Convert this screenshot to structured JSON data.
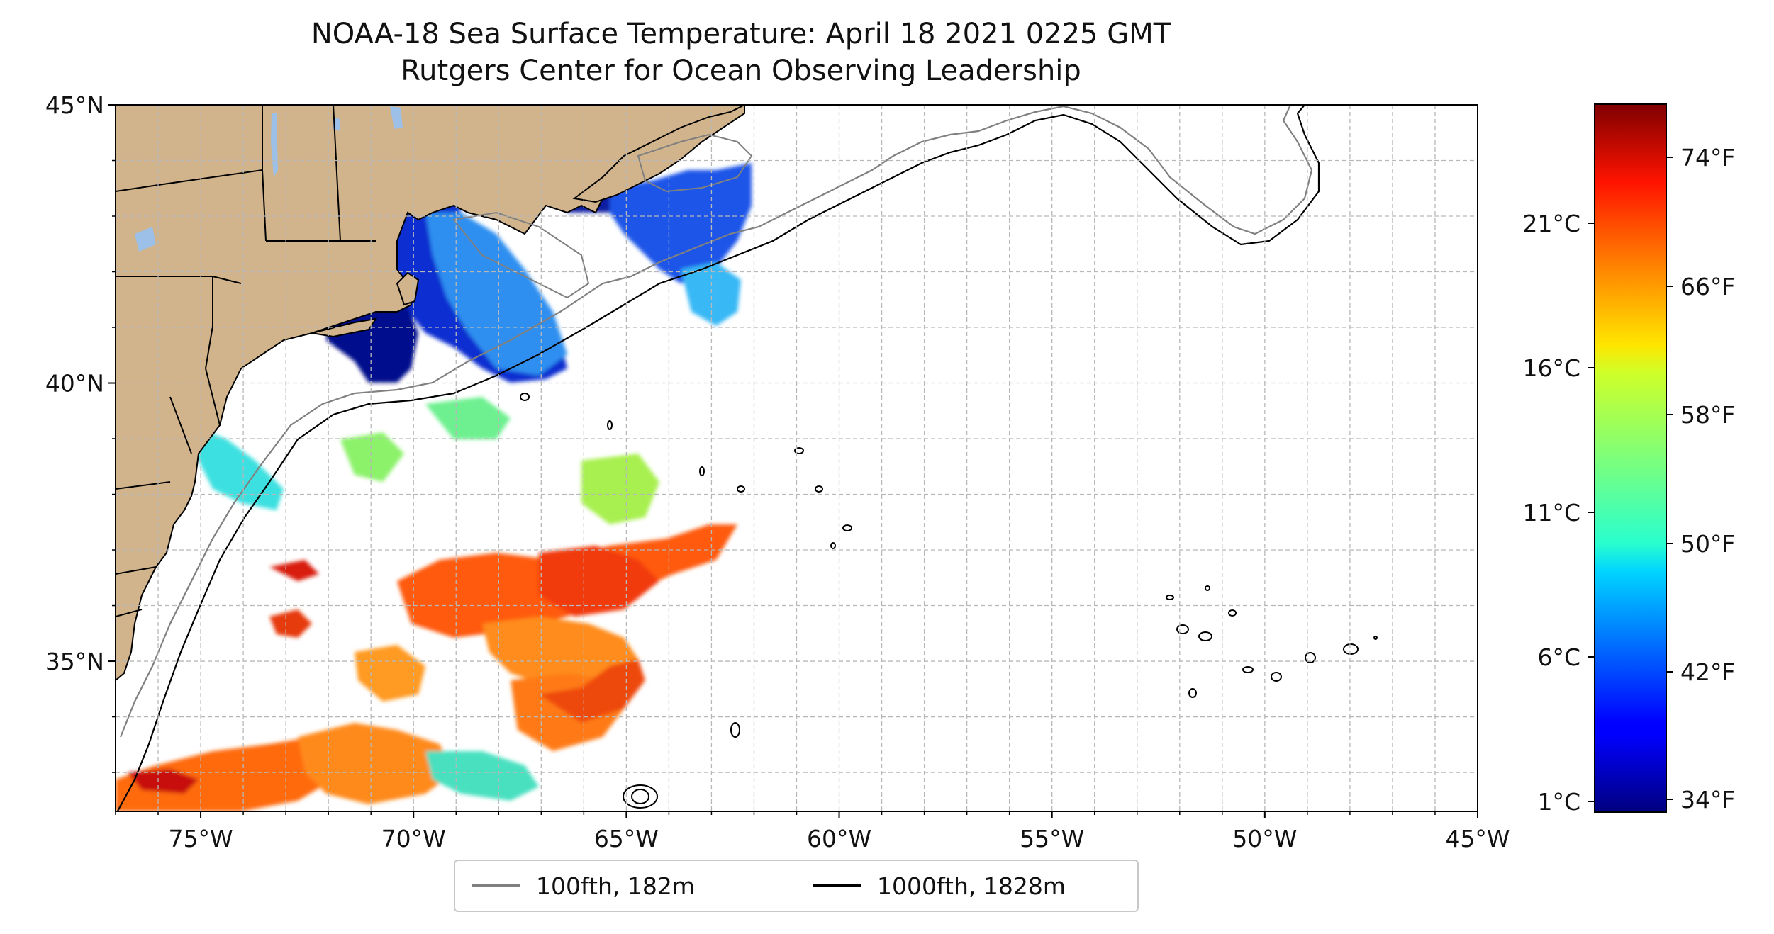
{
  "title": {
    "line1": "NOAA-18 Sea Surface Temperature: April 18 2021 0225 GMT",
    "line2": "Rutgers Center for Ocean Observing Leadership"
  },
  "map": {
    "lon_range": [
      -77,
      -45
    ],
    "lat_range": [
      32.3,
      45
    ],
    "lon_ticks": [
      {
        "value": -75,
        "label": "75°W"
      },
      {
        "value": -70,
        "label": "70°W"
      },
      {
        "value": -65,
        "label": "65°W"
      },
      {
        "value": -60,
        "label": "60°W"
      },
      {
        "value": -55,
        "label": "55°W"
      },
      {
        "value": -50,
        "label": "50°W"
      },
      {
        "value": -45,
        "label": "45°W"
      }
    ],
    "lat_ticks": [
      {
        "value": 45,
        "label": "45°N"
      },
      {
        "value": 40,
        "label": "40°N"
      },
      {
        "value": 35,
        "label": "35°N"
      }
    ],
    "grid": true,
    "land_color": "#d2b48c",
    "lake_color": "#9cc0e8"
  },
  "legend": {
    "entries": [
      {
        "label": "100fth, 182m",
        "color": "#808080"
      },
      {
        "label": "1000fth, 1828m",
        "color": "#000000"
      }
    ]
  },
  "colorbar": {
    "colormap": "jet",
    "celsius_ticks": [
      "21°C",
      "16°C",
      "11°C",
      "6°C",
      "1°C"
    ],
    "fahrenheit_ticks": [
      "74°F",
      "66°F",
      "58°F",
      "50°F",
      "42°F",
      "34°F"
    ]
  }
}
